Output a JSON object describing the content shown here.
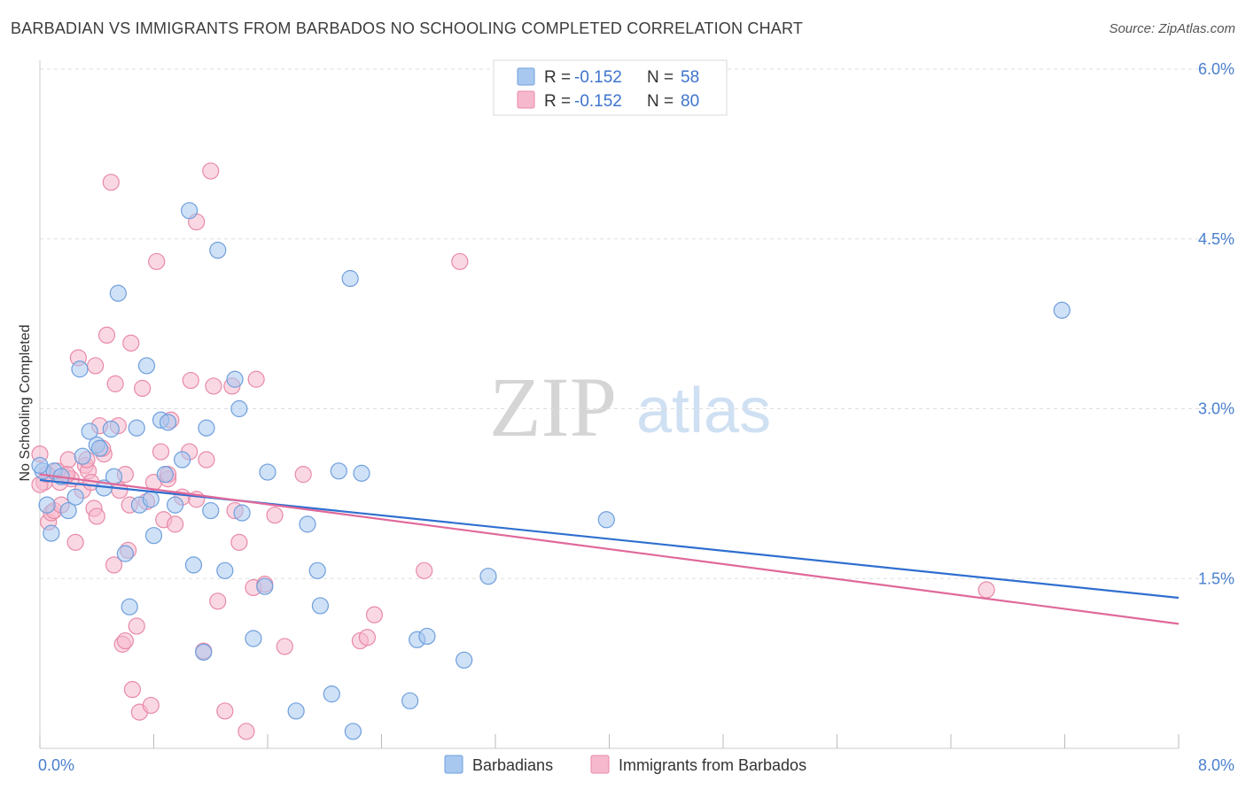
{
  "title": "BARBADIAN VS IMMIGRANTS FROM BARBADOS NO SCHOOLING COMPLETED CORRELATION CHART",
  "source": "Source: ZipAtlas.com",
  "watermark": {
    "zip": "ZIP",
    "atlas": "atlas"
  },
  "colors": {
    "blue_fill": "#a8c8f0",
    "blue_stroke": "#6f9fdc",
    "blue_line": "#2f6fd0",
    "pink_fill": "#f6b8cc",
    "pink_stroke": "#e88aa8",
    "pink_line": "#e0699a",
    "axis_text": "#4a7fcf",
    "grid": "#dddddd"
  },
  "legend": {
    "rows": [
      {
        "r_label": "R = ",
        "r_value": "-0.152",
        "n_label": "N = ",
        "n_value": "58",
        "color": "blue"
      },
      {
        "r_label": "R = ",
        "r_value": "-0.152",
        "n_label": "N = ",
        "n_value": "80",
        "color": "pink"
      }
    ]
  },
  "bottom_legend": {
    "items": [
      {
        "label": "Barbadians",
        "color": "blue"
      },
      {
        "label": "Immigrants from Barbados",
        "color": "pink"
      }
    ]
  },
  "chart_data": {
    "type": "scatter",
    "title": "BARBADIAN VS IMMIGRANTS FROM BARBADOS NO SCHOOLING COMPLETED CORRELATION CHART",
    "xlabel": "",
    "ylabel": "No Schooling Completed",
    "xlim": [
      0,
      8.0
    ],
    "ylim": [
      0,
      6.0
    ],
    "x_tick_labels": [
      "0.0%",
      "8.0%"
    ],
    "y_ticks": [
      1.5,
      3.0,
      4.5,
      6.0
    ],
    "y_tick_labels": [
      "1.5%",
      "3.0%",
      "4.5%",
      "6.0%"
    ],
    "grid": true,
    "legend_position": "top-center",
    "series": [
      {
        "name": "Barbadians",
        "color": "blue",
        "trend": {
          "x": [
            0,
            8.0
          ],
          "y": [
            2.37,
            1.33
          ]
        },
        "points": [
          [
            0.02,
            2.45
          ],
          [
            0.05,
            2.15
          ],
          [
            0.08,
            1.9
          ],
          [
            0.1,
            2.45
          ],
          [
            0.15,
            2.4
          ],
          [
            0.2,
            2.1
          ],
          [
            0.25,
            2.22
          ],
          [
            0.28,
            3.35
          ],
          [
            0.3,
            2.58
          ],
          [
            0.35,
            2.8
          ],
          [
            0.4,
            2.68
          ],
          [
            0.42,
            2.65
          ],
          [
            0.45,
            2.3
          ],
          [
            0.5,
            2.82
          ],
          [
            0.52,
            2.4
          ],
          [
            0.55,
            4.02
          ],
          [
            0.6,
            1.72
          ],
          [
            0.63,
            1.25
          ],
          [
            0.68,
            2.83
          ],
          [
            0.7,
            2.15
          ],
          [
            0.75,
            3.38
          ],
          [
            0.78,
            2.2
          ],
          [
            0.8,
            1.88
          ],
          [
            0.85,
            2.9
          ],
          [
            0.88,
            2.42
          ],
          [
            0.9,
            2.88
          ],
          [
            0.95,
            2.15
          ],
          [
            1.0,
            2.55
          ],
          [
            1.05,
            4.75
          ],
          [
            1.08,
            1.62
          ],
          [
            1.15,
            0.85
          ],
          [
            1.17,
            2.83
          ],
          [
            1.2,
            2.1
          ],
          [
            1.25,
            4.4
          ],
          [
            1.3,
            1.57
          ],
          [
            1.37,
            3.26
          ],
          [
            1.4,
            3.0
          ],
          [
            1.42,
            2.08
          ],
          [
            1.5,
            0.97
          ],
          [
            1.58,
            1.43
          ],
          [
            1.6,
            2.44
          ],
          [
            1.8,
            0.33
          ],
          [
            1.88,
            1.98
          ],
          [
            1.95,
            1.57
          ],
          [
            1.97,
            1.26
          ],
          [
            2.05,
            0.48
          ],
          [
            2.1,
            2.45
          ],
          [
            2.18,
            4.15
          ],
          [
            2.2,
            0.15
          ],
          [
            2.26,
            2.43
          ],
          [
            2.6,
            0.42
          ],
          [
            2.65,
            0.96
          ],
          [
            2.72,
            0.99
          ],
          [
            2.98,
            0.78
          ],
          [
            3.15,
            1.52
          ],
          [
            3.98,
            2.02
          ],
          [
            7.18,
            3.87
          ],
          [
            0.0,
            2.5
          ]
        ]
      },
      {
        "name": "Immigrants from Barbados",
        "color": "pink",
        "trend": {
          "x": [
            0,
            8.0
          ],
          "y": [
            2.42,
            1.1
          ]
        },
        "points": [
          [
            0.0,
            2.6
          ],
          [
            0.03,
            2.35
          ],
          [
            0.06,
            2.0
          ],
          [
            0.08,
            2.08
          ],
          [
            0.1,
            2.1
          ],
          [
            0.12,
            2.45
          ],
          [
            0.15,
            2.15
          ],
          [
            0.18,
            2.4
          ],
          [
            0.2,
            2.55
          ],
          [
            0.22,
            2.38
          ],
          [
            0.25,
            1.82
          ],
          [
            0.27,
            3.45
          ],
          [
            0.3,
            2.28
          ],
          [
            0.32,
            2.5
          ],
          [
            0.34,
            2.45
          ],
          [
            0.36,
            2.35
          ],
          [
            0.38,
            2.12
          ],
          [
            0.39,
            3.38
          ],
          [
            0.4,
            2.05
          ],
          [
            0.42,
            2.85
          ],
          [
            0.45,
            2.6
          ],
          [
            0.47,
            3.65
          ],
          [
            0.5,
            5.0
          ],
          [
            0.52,
            1.62
          ],
          [
            0.53,
            3.22
          ],
          [
            0.55,
            2.85
          ],
          [
            0.56,
            2.28
          ],
          [
            0.58,
            0.92
          ],
          [
            0.6,
            0.95
          ],
          [
            0.62,
            1.75
          ],
          [
            0.63,
            2.15
          ],
          [
            0.64,
            3.58
          ],
          [
            0.65,
            0.52
          ],
          [
            0.68,
            1.08
          ],
          [
            0.7,
            0.32
          ],
          [
            0.72,
            3.18
          ],
          [
            0.75,
            2.18
          ],
          [
            0.78,
            0.38
          ],
          [
            0.8,
            2.35
          ],
          [
            0.82,
            4.3
          ],
          [
            0.85,
            2.62
          ],
          [
            0.87,
            2.02
          ],
          [
            0.9,
            2.38
          ],
          [
            0.92,
            2.9
          ],
          [
            0.95,
            1.98
          ],
          [
            1.0,
            2.22
          ],
          [
            1.05,
            2.62
          ],
          [
            1.06,
            3.25
          ],
          [
            1.1,
            4.65
          ],
          [
            1.15,
            0.86
          ],
          [
            1.17,
            2.55
          ],
          [
            1.2,
            5.1
          ],
          [
            1.22,
            3.2
          ],
          [
            1.25,
            1.3
          ],
          [
            1.3,
            0.33
          ],
          [
            1.35,
            3.2
          ],
          [
            1.37,
            2.1
          ],
          [
            1.4,
            1.82
          ],
          [
            1.45,
            0.15
          ],
          [
            1.5,
            1.42
          ],
          [
            1.52,
            3.26
          ],
          [
            1.58,
            1.45
          ],
          [
            1.65,
            2.06
          ],
          [
            1.72,
            0.9
          ],
          [
            1.85,
            2.42
          ],
          [
            2.25,
            0.95
          ],
          [
            2.3,
            0.98
          ],
          [
            2.35,
            1.18
          ],
          [
            2.7,
            1.57
          ],
          [
            2.95,
            4.3
          ],
          [
            6.65,
            1.4
          ],
          [
            0.0,
            2.33
          ],
          [
            0.05,
            2.42
          ],
          [
            0.14,
            2.35
          ],
          [
            0.19,
            2.42
          ],
          [
            0.33,
            2.55
          ],
          [
            0.44,
            2.65
          ],
          [
            0.6,
            2.42
          ],
          [
            0.9,
            2.42
          ],
          [
            1.1,
            2.2
          ]
        ]
      }
    ]
  }
}
